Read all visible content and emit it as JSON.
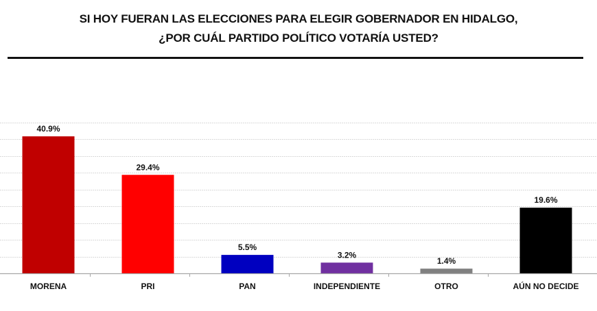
{
  "chart_data": {
    "type": "bar",
    "title": "SI HOY FUERAN LAS ELECCIONES PARA ELEGIR GOBERNADOR EN HIDALGO,",
    "subtitle": "¿POR CUÁL PARTIDO POLÍTICO VOTARÍA USTED?",
    "xlabel": "",
    "ylabel": "",
    "ylim": [
      0,
      45
    ],
    "grid": true,
    "grid_step": 5,
    "categories": [
      "MORENA",
      "PRI",
      "PAN",
      "INDEPENDIENTE",
      "OTRO",
      "AÚN NO DECIDE"
    ],
    "values": [
      40.9,
      29.4,
      5.5,
      3.2,
      1.4,
      19.6
    ],
    "data_labels": [
      "40.9%",
      "29.4%",
      "5.5%",
      "3.2%",
      "1.4%",
      "19.6%"
    ],
    "colors": [
      "#c00000",
      "#ff0000",
      "#0000c0",
      "#7030a0",
      "#808080",
      "#000000"
    ]
  }
}
